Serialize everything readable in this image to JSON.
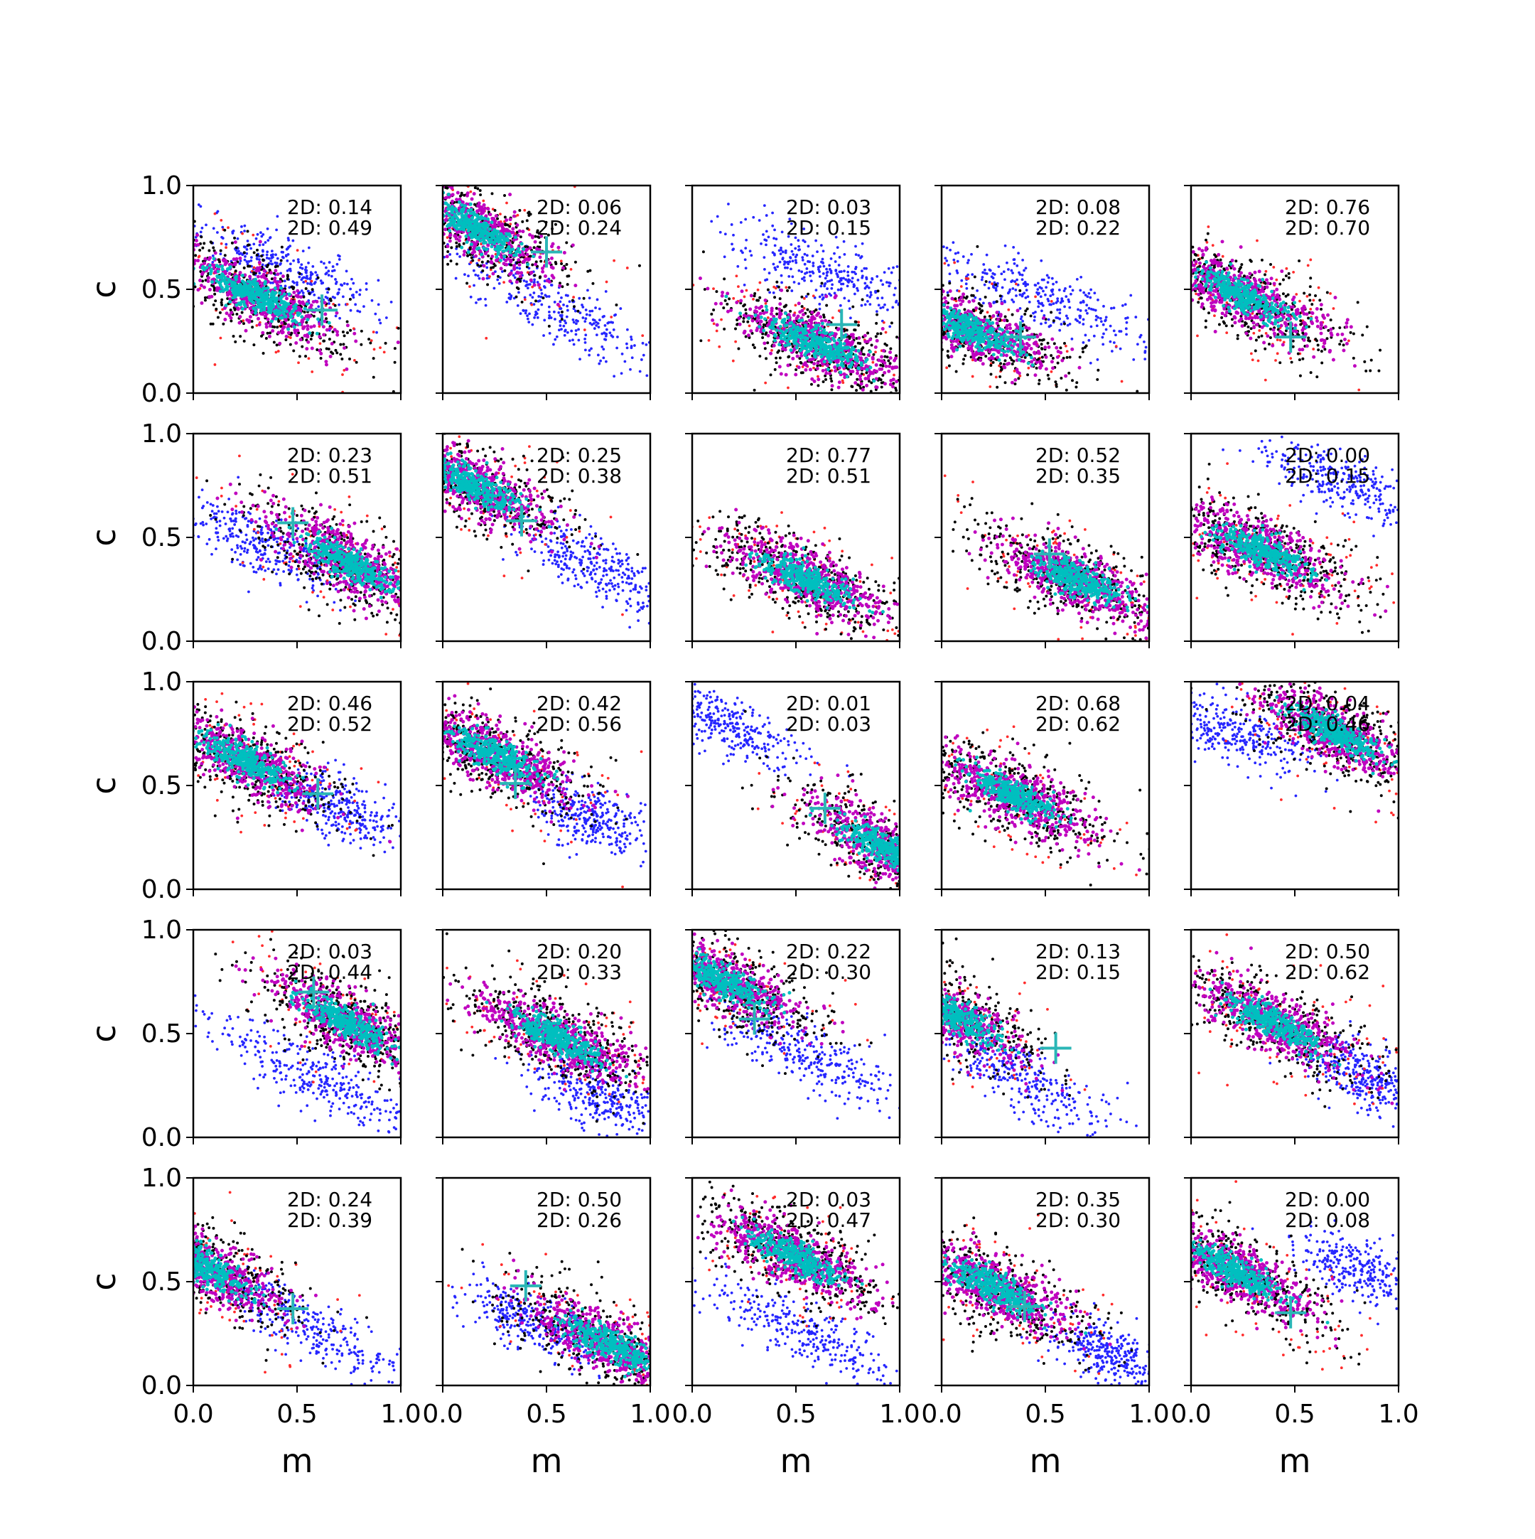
{
  "chart_data": {
    "type": "scatter",
    "layout": "5x5 grid of subplots",
    "xlabel": "m",
    "ylabel": "c",
    "xlim": [
      0,
      1
    ],
    "ylim": [
      0,
      1
    ],
    "x_ticks": [
      "0.0",
      "0.5",
      "1.0"
    ],
    "y_ticks": [
      "0.0",
      "0.5",
      "1.0"
    ],
    "grid": false,
    "colors": {
      "blue_points": "#2626ff",
      "red_points": "#ff2b2b",
      "black_points": "#000000",
      "magenta_points": "#bf00bf",
      "cyan_points": "#00bfbf",
      "marker": "#2ab6b6"
    },
    "panels": [
      {
        "annotations": [
          "2D: 0.14",
          "2D: 0.49"
        ],
        "marker": [
          0.62,
          0.4
        ],
        "cloud": {
          "cx": 0.3,
          "cy": 0.47,
          "slope": -0.5
        },
        "blue": {
          "cx": 0.45,
          "cy": 0.6,
          "slope": -0.45,
          "spread": 0.26
        }
      },
      {
        "annotations": [
          "2D: 0.06",
          "2D: 0.24"
        ],
        "marker": [
          0.5,
          0.68
        ],
        "cloud": {
          "cx": 0.15,
          "cy": 0.8,
          "slope": -0.6
        },
        "blue": {
          "cx": 0.55,
          "cy": 0.4,
          "slope": -0.55,
          "spread": 0.32
        }
      },
      {
        "annotations": [
          "2D: 0.03",
          "2D: 0.15"
        ],
        "marker": [
          0.72,
          0.33
        ],
        "cloud": {
          "cx": 0.6,
          "cy": 0.24,
          "slope": -0.4
        },
        "blue": {
          "cx": 0.65,
          "cy": 0.58,
          "slope": -0.4,
          "spread": 0.25
        }
      },
      {
        "annotations": [
          "2D: 0.08",
          "2D: 0.22"
        ],
        "marker": [
          0.38,
          0.27
        ],
        "cloud": {
          "cx": 0.15,
          "cy": 0.3,
          "slope": -0.4
        },
        "blue": {
          "cx": 0.5,
          "cy": 0.45,
          "slope": -0.4,
          "spread": 0.32
        }
      },
      {
        "annotations": [
          "2D: 0.76",
          "2D: 0.70"
        ],
        "marker": [
          0.48,
          0.27
        ],
        "cloud": {
          "cx": 0.25,
          "cy": 0.47,
          "slope": -0.5
        },
        "blue": null
      },
      {
        "annotations": [
          "2D: 0.23",
          "2D: 0.51"
        ],
        "marker": [
          0.48,
          0.57
        ],
        "cloud": {
          "cx": 0.75,
          "cy": 0.38,
          "slope": -0.55
        },
        "blue": {
          "cx": 0.3,
          "cy": 0.48,
          "slope": -0.5,
          "spread": 0.25
        }
      },
      {
        "annotations": [
          "2D: 0.25",
          "2D: 0.38"
        ],
        "marker": [
          0.38,
          0.58
        ],
        "cloud": {
          "cx": 0.15,
          "cy": 0.75,
          "slope": -0.5
        },
        "blue": {
          "cx": 0.75,
          "cy": 0.35,
          "slope": -0.5,
          "spread": 0.22
        }
      },
      {
        "annotations": [
          "2D: 0.77",
          "2D: 0.51"
        ],
        "marker": null,
        "cloud": {
          "cx": 0.55,
          "cy": 0.3,
          "slope": -0.45
        },
        "blue": null
      },
      {
        "annotations": [
          "2D: 0.52",
          "2D: 0.35"
        ],
        "marker": [
          0.52,
          0.42
        ],
        "cloud": {
          "cx": 0.65,
          "cy": 0.3,
          "slope": -0.45
        },
        "blue": null
      },
      {
        "annotations": [
          "2D: 0.00",
          "2D: 0.15"
        ],
        "marker": null,
        "cloud": {
          "cx": 0.35,
          "cy": 0.43,
          "slope": -0.45
        },
        "blue": {
          "cx": 0.75,
          "cy": 0.75,
          "slope": -0.4,
          "spread": 0.22
        }
      },
      {
        "annotations": [
          "2D: 0.46",
          "2D: 0.52"
        ],
        "marker": [
          0.6,
          0.46
        ],
        "cloud": {
          "cx": 0.25,
          "cy": 0.62,
          "slope": -0.5
        },
        "blue": {
          "cx": 0.7,
          "cy": 0.4,
          "slope": -0.5,
          "spread": 0.15
        }
      },
      {
        "annotations": [
          "2D: 0.42",
          "2D: 0.56"
        ],
        "marker": [
          0.35,
          0.51
        ],
        "cloud": {
          "cx": 0.25,
          "cy": 0.65,
          "slope": -0.5
        },
        "blue": {
          "cx": 0.7,
          "cy": 0.35,
          "slope": -0.4,
          "spread": 0.15
        }
      },
      {
        "annotations": [
          "2D: 0.01",
          "2D: 0.03"
        ],
        "marker": [
          0.64,
          0.39
        ],
        "cloud": {
          "cx": 0.92,
          "cy": 0.2,
          "slope": -0.6
        },
        "blue": {
          "cx": 0.15,
          "cy": 0.8,
          "slope": -0.5,
          "spread": 0.2
        }
      },
      {
        "annotations": [
          "2D: 0.68",
          "2D: 0.62"
        ],
        "marker": null,
        "cloud": {
          "cx": 0.35,
          "cy": 0.45,
          "slope": -0.5
        },
        "blue": null
      },
      {
        "annotations": [
          "2D: 0.04",
          "2D: 0.46"
        ],
        "marker": null,
        "cloud": {
          "cx": 0.7,
          "cy": 0.75,
          "slope": -0.5
        },
        "blue": {
          "cx": 0.2,
          "cy": 0.75,
          "slope": -0.35,
          "spread": 0.22
        }
      },
      {
        "annotations": [
          "2D: 0.03",
          "2D: 0.44"
        ],
        "marker": [
          0.58,
          0.7
        ],
        "cloud": {
          "cx": 0.75,
          "cy": 0.55,
          "slope": -0.55
        },
        "blue": {
          "cx": 0.6,
          "cy": 0.28,
          "slope": -0.5,
          "spread": 0.3
        }
      },
      {
        "annotations": [
          "2D: 0.20",
          "2D: 0.33"
        ],
        "marker": null,
        "cloud": {
          "cx": 0.55,
          "cy": 0.48,
          "slope": -0.5
        },
        "blue": {
          "cx": 0.75,
          "cy": 0.2,
          "slope": -0.4,
          "spread": 0.2
        }
      },
      {
        "annotations": [
          "2D: 0.22",
          "2D: 0.30"
        ],
        "marker": [
          0.3,
          0.57
        ],
        "cloud": {
          "cx": 0.15,
          "cy": 0.75,
          "slope": -0.5
        },
        "blue": {
          "cx": 0.55,
          "cy": 0.4,
          "slope": -0.5,
          "spread": 0.25
        }
      },
      {
        "annotations": [
          "2D: 0.13",
          "2D: 0.15"
        ],
        "marker": [
          0.55,
          0.43
        ],
        "cloud": {
          "cx": 0.05,
          "cy": 0.6,
          "slope": -0.6
        },
        "blue": {
          "cx": 0.4,
          "cy": 0.28,
          "slope": -0.55,
          "spread": 0.25
        }
      },
      {
        "annotations": [
          "2D: 0.50",
          "2D: 0.62"
        ],
        "marker": null,
        "cloud": {
          "cx": 0.4,
          "cy": 0.55,
          "slope": -0.5
        },
        "blue": {
          "cx": 0.85,
          "cy": 0.3,
          "slope": -0.5,
          "spread": 0.15
        }
      },
      {
        "annotations": [
          "2D: 0.24",
          "2D: 0.39"
        ],
        "marker": [
          0.48,
          0.37
        ],
        "cloud": {
          "cx": 0.05,
          "cy": 0.58,
          "slope": -0.6
        },
        "blue": {
          "cx": 0.55,
          "cy": 0.28,
          "slope": -0.55,
          "spread": 0.28
        }
      },
      {
        "annotations": [
          "2D: 0.50",
          "2D: 0.26"
        ],
        "marker": [
          0.4,
          0.48
        ],
        "cloud": {
          "cx": 0.8,
          "cy": 0.2,
          "slope": -0.5
        },
        "blue": {
          "cx": 0.45,
          "cy": 0.3,
          "slope": -0.45,
          "spread": 0.2
        }
      },
      {
        "annotations": [
          "2D: 0.03",
          "2D: 0.47"
        ],
        "marker": null,
        "cloud": {
          "cx": 0.5,
          "cy": 0.62,
          "slope": -0.5
        },
        "blue": {
          "cx": 0.55,
          "cy": 0.25,
          "slope": -0.5,
          "spread": 0.28
        }
      },
      {
        "annotations": [
          "2D: 0.35",
          "2D: 0.30"
        ],
        "marker": [
          0.4,
          0.38
        ],
        "cloud": {
          "cx": 0.25,
          "cy": 0.47,
          "slope": -0.5
        },
        "blue": {
          "cx": 0.8,
          "cy": 0.15,
          "slope": -0.5,
          "spread": 0.15
        }
      },
      {
        "annotations": [
          "2D: 0.00",
          "2D: 0.08"
        ],
        "marker": [
          0.48,
          0.35
        ],
        "cloud": {
          "cx": 0.22,
          "cy": 0.55,
          "slope": -0.55
        },
        "blue": {
          "cx": 0.85,
          "cy": 0.55,
          "slope": -0.35,
          "spread": 0.18
        }
      }
    ]
  }
}
